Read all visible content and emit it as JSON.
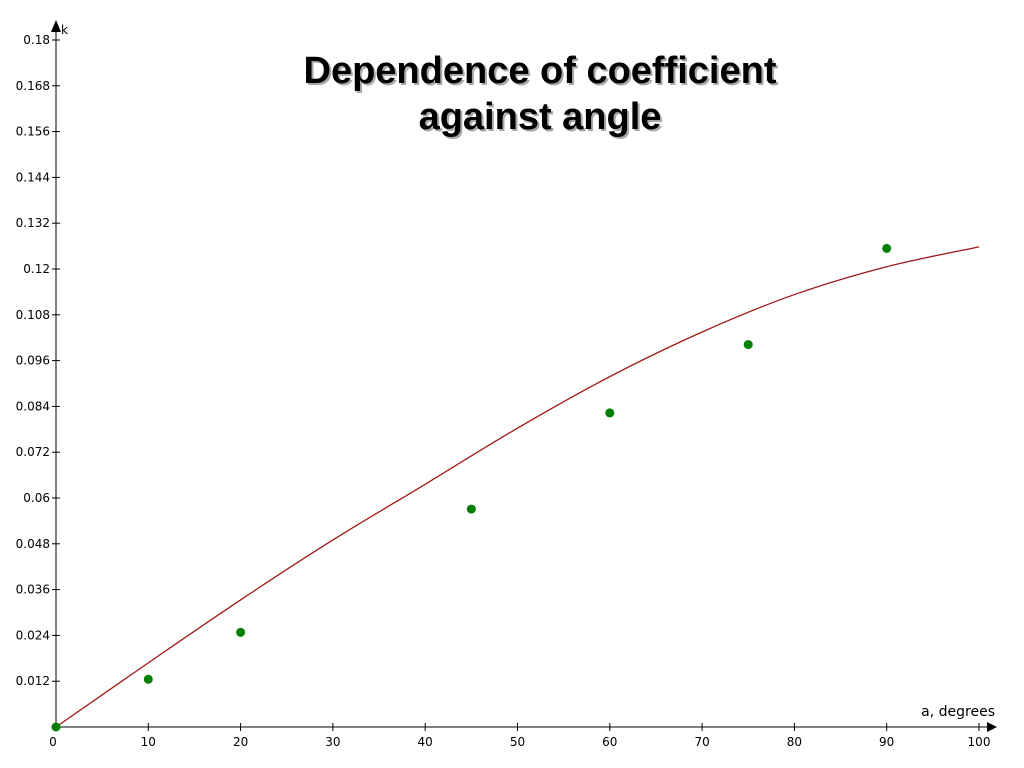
{
  "chart_data": {
    "type": "scatter",
    "title_line1": "Dependence of coefficient",
    "title_line2": "against  angle",
    "xlabel": "a, degrees",
    "ylabel": "k",
    "xlim": [
      0,
      100
    ],
    "ylim": [
      0,
      0.18
    ],
    "x_ticks": [
      "0",
      "10",
      "20",
      "30",
      "40",
      "50",
      "60",
      "70",
      "80",
      "90",
      "100"
    ],
    "y_ticks": [
      "0.012",
      "0.024",
      "0.036",
      "0.048",
      "0.06",
      "0.072",
      "0.084",
      "0.096",
      "0.108",
      "0.12",
      "0.132",
      "0.144",
      "0.156",
      "0.168",
      "0.18"
    ],
    "grid": false,
    "series": [
      {
        "kind": "points",
        "color": "#008000",
        "x": [
          0,
          10,
          20,
          45,
          60,
          75,
          90
        ],
        "y": [
          0.0,
          0.0125,
          0.0248,
          0.0571,
          0.0823,
          0.1002,
          0.1254
        ]
      },
      {
        "kind": "line",
        "color": "#a01818",
        "x": [
          0,
          10,
          20,
          30,
          40,
          50,
          60,
          70,
          80,
          90,
          100
        ],
        "y": [
          0.0,
          0.0168,
          0.0333,
          0.049,
          0.0636,
          0.0783,
          0.0918,
          0.1035,
          0.1133,
          0.1206,
          0.1258
        ]
      }
    ]
  }
}
